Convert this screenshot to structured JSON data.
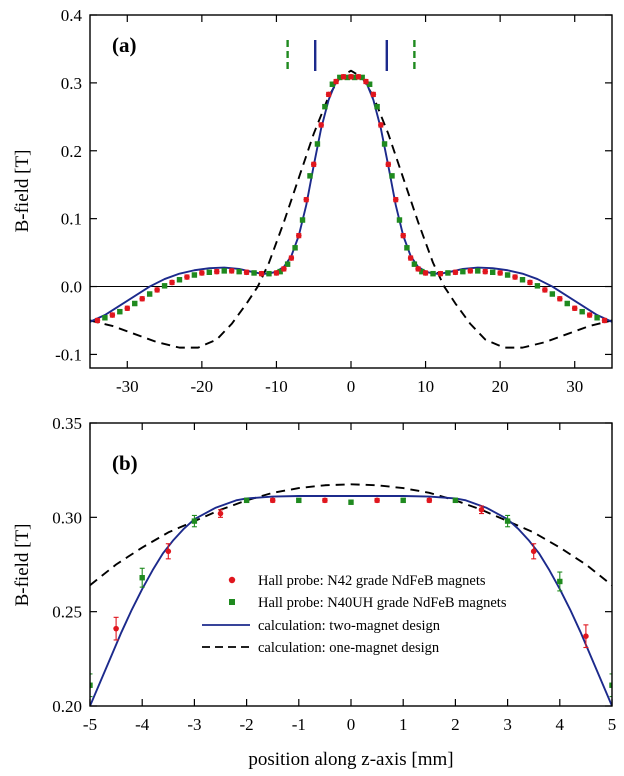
{
  "colors": {
    "n42": "#e0161e",
    "n40uh": "#1f8a1f",
    "two_magnet": "#1c2a8c",
    "one_magnet": "#000000"
  },
  "figure": {
    "xlabel": "position along z-axis [mm]"
  },
  "chart_data": [
    {
      "type": "line",
      "panel_label": "(a)",
      "ylabel": "B-field [T]",
      "xlim": [
        -35,
        35
      ],
      "ylim": [
        -0.12,
        0.4
      ],
      "x_ticks": [
        -30,
        -20,
        -10,
        0,
        10,
        20,
        30
      ],
      "y_ticks": [
        -0.1,
        0.0,
        0.1,
        0.2,
        0.3,
        0.4
      ],
      "x_tick_labels": [
        "-30",
        "-20",
        "-10",
        "0",
        "10",
        "20",
        "30"
      ],
      "y_tick_labels": [
        "-0.1",
        "0.0",
        "0.1",
        "0.2",
        "0.3",
        "0.4"
      ],
      "zero_line": true,
      "magnet_markers": [
        {
          "x": -8.5,
          "style": "dashed",
          "series": "one_magnet_position"
        },
        {
          "x": -4.8,
          "style": "solid",
          "series": "two_magnet_position"
        },
        {
          "x": 4.8,
          "style": "solid",
          "series": "two_magnet_position"
        },
        {
          "x": 8.5,
          "style": "dashed",
          "series": "one_magnet_position"
        }
      ],
      "series": [
        {
          "key": "two_magnet",
          "style": "solid",
          "x": [
            -35,
            -33,
            -31,
            -29,
            -27,
            -25,
            -23,
            -21,
            -19,
            -17,
            -15,
            -13,
            -12,
            -11,
            -10,
            -9,
            -8,
            -7,
            -6,
            -5,
            -4,
            -3,
            -2,
            -1,
            0,
            1,
            2,
            3,
            4,
            5,
            6,
            7,
            8,
            9,
            10,
            11,
            12,
            13,
            15,
            17,
            19,
            21,
            23,
            25,
            27,
            29,
            31,
            33,
            35
          ],
          "y": [
            -0.052,
            -0.042,
            -0.028,
            -0.014,
            0.0,
            0.011,
            0.019,
            0.024,
            0.027,
            0.028,
            0.026,
            0.021,
            0.019,
            0.019,
            0.022,
            0.029,
            0.045,
            0.075,
            0.12,
            0.178,
            0.233,
            0.275,
            0.302,
            0.31,
            0.31,
            0.31,
            0.302,
            0.275,
            0.233,
            0.178,
            0.12,
            0.075,
            0.045,
            0.029,
            0.022,
            0.019,
            0.019,
            0.021,
            0.026,
            0.028,
            0.027,
            0.024,
            0.019,
            0.011,
            0.0,
            -0.014,
            -0.028,
            -0.042,
            -0.052
          ]
        },
        {
          "key": "one_magnet",
          "style": "dashed",
          "x": [
            -35,
            -32,
            -29,
            -26,
            -23,
            -20.5,
            -18,
            -16,
            -14,
            -12.5,
            -11,
            -9,
            -7,
            -5,
            -3,
            -1.5,
            0,
            1.5,
            3,
            5,
            7,
            9,
            11,
            12.5,
            14,
            16,
            18,
            20.5,
            23,
            26,
            29,
            32,
            35
          ],
          "y": [
            -0.05,
            -0.058,
            -0.07,
            -0.082,
            -0.09,
            -0.09,
            -0.078,
            -0.055,
            -0.025,
            0.0,
            0.035,
            0.095,
            0.16,
            0.225,
            0.28,
            0.308,
            0.318,
            0.308,
            0.28,
            0.225,
            0.16,
            0.095,
            0.035,
            0.0,
            -0.025,
            -0.055,
            -0.078,
            -0.09,
            -0.09,
            -0.082,
            -0.07,
            -0.058,
            -0.05
          ]
        },
        {
          "key": "n42",
          "style": "points",
          "x": [
            -34,
            -32,
            -30,
            -28,
            -26,
            -24,
            -22,
            -20,
            -18,
            -16,
            -14,
            -12,
            -10,
            -9,
            -8,
            -7,
            -6,
            -5,
            -4,
            -3,
            -2,
            -1,
            0,
            1,
            2,
            3,
            4,
            5,
            6,
            7,
            8,
            9,
            10,
            12,
            14,
            16,
            18,
            20,
            22,
            24,
            26,
            28,
            30,
            32,
            34
          ],
          "y": [
            -0.05,
            -0.042,
            -0.032,
            -0.018,
            -0.005,
            0.006,
            0.014,
            0.02,
            0.022,
            0.023,
            0.021,
            0.019,
            0.02,
            0.026,
            0.042,
            0.075,
            0.128,
            0.18,
            0.238,
            0.283,
            0.302,
            0.309,
            0.309,
            0.309,
            0.302,
            0.283,
            0.238,
            0.18,
            0.128,
            0.075,
            0.042,
            0.026,
            0.02,
            0.019,
            0.021,
            0.023,
            0.022,
            0.02,
            0.014,
            0.006,
            -0.005,
            -0.018,
            -0.032,
            -0.042,
            -0.05
          ]
        },
        {
          "key": "n40uh",
          "style": "points",
          "x": [
            -33,
            -31,
            -29,
            -27,
            -25,
            -23,
            -21,
            -19,
            -17,
            -15,
            -13,
            -11,
            -9.5,
            -8.5,
            -7.5,
            -6.5,
            -5.5,
            -4.5,
            -3.5,
            -2.5,
            -1.5,
            -0.5,
            0.5,
            1.5,
            2.5,
            3.5,
            4.5,
            5.5,
            6.5,
            7.5,
            8.5,
            9.5,
            11,
            13,
            15,
            17,
            19,
            21,
            23,
            25,
            27,
            29,
            31,
            33
          ],
          "y": [
            -0.046,
            -0.037,
            -0.025,
            -0.011,
            0.001,
            0.01,
            0.017,
            0.021,
            0.023,
            0.022,
            0.02,
            0.019,
            0.022,
            0.033,
            0.057,
            0.098,
            0.163,
            0.21,
            0.265,
            0.298,
            0.308,
            0.308,
            0.308,
            0.308,
            0.298,
            0.265,
            0.21,
            0.163,
            0.098,
            0.057,
            0.033,
            0.022,
            0.019,
            0.02,
            0.022,
            0.023,
            0.021,
            0.017,
            0.01,
            0.001,
            -0.011,
            -0.025,
            -0.037,
            -0.046
          ]
        }
      ]
    },
    {
      "type": "line",
      "panel_label": "(b)",
      "ylabel": "B-field [T]",
      "xlim": [
        -5,
        5
      ],
      "ylim": [
        0.2,
        0.35
      ],
      "x_ticks": [
        -5,
        -4,
        -3,
        -2,
        -1,
        0,
        1,
        2,
        3,
        4,
        5
      ],
      "y_ticks": [
        0.2,
        0.25,
        0.3,
        0.35
      ],
      "x_tick_labels": [
        "-5",
        "-4",
        "-3",
        "-2",
        "-1",
        "0",
        "1",
        "2",
        "3",
        "4",
        "5"
      ],
      "y_tick_labels": [
        "0.20",
        "0.25",
        "0.30",
        "0.35"
      ],
      "legend": [
        {
          "key": "n42",
          "marker": "circle",
          "label": "Hall probe: N42 grade NdFeB magnets"
        },
        {
          "key": "n40uh",
          "marker": "square",
          "label": "Hall probe: N40UH grade NdFeB magnets"
        },
        {
          "key": "two_magnet",
          "marker": "solid-line",
          "label": "calculation: two-magnet design"
        },
        {
          "key": "one_magnet",
          "marker": "dashed-line",
          "label": "calculation: one-magnet design"
        }
      ],
      "series": [
        {
          "key": "two_magnet",
          "style": "solid",
          "x": [
            -5,
            -4.8,
            -4.6,
            -4.4,
            -4.2,
            -4,
            -3.8,
            -3.6,
            -3.4,
            -3.2,
            -3,
            -2.8,
            -2.6,
            -2.4,
            -2.2,
            -2,
            -1.5,
            -1,
            -0.5,
            0,
            0.5,
            1,
            1.5,
            2,
            2.2,
            2.4,
            2.6,
            2.8,
            3,
            3.2,
            3.4,
            3.6,
            3.8,
            4,
            4.2,
            4.4,
            4.6,
            4.8,
            5
          ],
          "y": [
            0.2,
            0.213,
            0.226,
            0.239,
            0.251,
            0.262,
            0.272,
            0.281,
            0.288,
            0.294,
            0.299,
            0.302,
            0.305,
            0.307,
            0.309,
            0.31,
            0.311,
            0.3113,
            0.3113,
            0.3113,
            0.3113,
            0.3113,
            0.311,
            0.31,
            0.309,
            0.307,
            0.305,
            0.302,
            0.299,
            0.294,
            0.288,
            0.281,
            0.272,
            0.262,
            0.251,
            0.239,
            0.226,
            0.213,
            0.2
          ]
        },
        {
          "key": "one_magnet",
          "style": "dashed",
          "x": [
            -5,
            -4.5,
            -4,
            -3.5,
            -3,
            -2.5,
            -2,
            -1.5,
            -1,
            -0.5,
            0,
            0.5,
            1,
            1.5,
            2,
            2.5,
            3,
            3.5,
            4,
            4.5,
            5
          ],
          "y": [
            0.264,
            0.275,
            0.284,
            0.292,
            0.298,
            0.304,
            0.309,
            0.313,
            0.3155,
            0.317,
            0.3175,
            0.317,
            0.3155,
            0.313,
            0.309,
            0.304,
            0.298,
            0.292,
            0.284,
            0.275,
            0.264
          ]
        },
        {
          "key": "n42",
          "style": "points",
          "x": [
            -4.5,
            -3.5,
            -2.5,
            -1.5,
            -0.5,
            0.5,
            1.5,
            2.5,
            3.5,
            4.5
          ],
          "y": [
            0.241,
            0.282,
            0.302,
            0.309,
            0.309,
            0.309,
            0.309,
            0.304,
            0.282,
            0.237
          ],
          "err": [
            0.006,
            0.004,
            0.002,
            0.001,
            0.001,
            0.001,
            0.001,
            0.002,
            0.004,
            0.006
          ]
        },
        {
          "key": "n40uh",
          "style": "points",
          "x": [
            -5,
            -4,
            -3,
            -2,
            -1,
            0,
            1,
            2,
            3,
            4,
            5
          ],
          "y": [
            0.211,
            0.268,
            0.298,
            0.309,
            0.309,
            0.308,
            0.309,
            0.309,
            0.298,
            0.266,
            0.211
          ],
          "err": [
            0.006,
            0.005,
            0.003,
            0.001,
            0.001,
            0.001,
            0.001,
            0.001,
            0.003,
            0.005,
            0.006
          ]
        }
      ]
    }
  ]
}
